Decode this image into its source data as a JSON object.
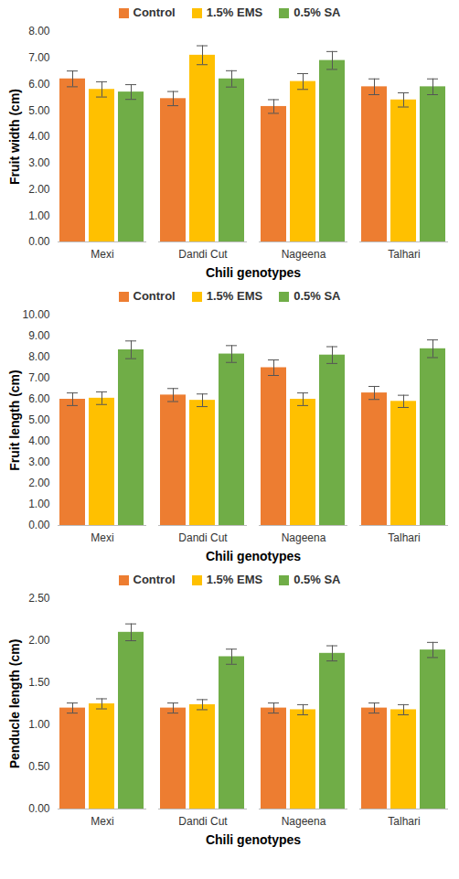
{
  "chart_data": [
    {
      "type": "bar",
      "xlabel": "Chili genotypes",
      "ylabel": "Fruit width (cm)",
      "categories": [
        "Mexi",
        "Dandi Cut",
        "Nageena",
        "Talhari"
      ],
      "series": [
        {
          "name": "Control",
          "color": "#ED7D31",
          "values": [
            6.2,
            5.45,
            5.15,
            5.9
          ],
          "errors": [
            0.3,
            0.27,
            0.26,
            0.3
          ]
        },
        {
          "name": "1.5% EMS",
          "color": "#FFC000",
          "values": [
            5.8,
            7.1,
            6.1,
            5.4
          ],
          "errors": [
            0.29,
            0.36,
            0.3,
            0.27
          ]
        },
        {
          "name": "0.5% SA",
          "color": "#70AD47",
          "values": [
            5.7,
            6.2,
            6.9,
            5.9
          ],
          "errors": [
            0.28,
            0.31,
            0.34,
            0.3
          ]
        }
      ],
      "ylim": [
        0,
        8
      ],
      "yticks": [
        {
          "value": 0,
          "label": "0.00"
        },
        {
          "value": 1,
          "label": "1.00"
        },
        {
          "value": 2,
          "label": "2.00"
        },
        {
          "value": 3,
          "label": "3.00"
        },
        {
          "value": 4,
          "label": "4.00"
        },
        {
          "value": 5,
          "label": "5.00"
        },
        {
          "value": 6,
          "label": "6.00"
        },
        {
          "value": 7,
          "label": "7.00"
        },
        {
          "value": 8,
          "label": "8.00"
        }
      ],
      "grid": false,
      "legend": "top"
    },
    {
      "type": "bar",
      "xlabel": "Chili genotypes",
      "ylabel": "Fruit length (cm)",
      "categories": [
        "Mexi",
        "Dandi Cut",
        "Nageena",
        "Talhari"
      ],
      "series": [
        {
          "name": "Control",
          "color": "#ED7D31",
          "values": [
            6.0,
            6.2,
            7.5,
            6.3
          ],
          "errors": [
            0.3,
            0.31,
            0.37,
            0.31
          ]
        },
        {
          "name": "1.5% EMS",
          "color": "#FFC000",
          "values": [
            6.05,
            5.95,
            6.0,
            5.9
          ],
          "errors": [
            0.3,
            0.3,
            0.3,
            0.29
          ]
        },
        {
          "name": "0.5% SA",
          "color": "#70AD47",
          "values": [
            8.35,
            8.15,
            8.1,
            8.4
          ],
          "errors": [
            0.42,
            0.4,
            0.4,
            0.42
          ]
        }
      ],
      "ylim": [
        0,
        10
      ],
      "yticks": [
        {
          "value": 0,
          "label": "0.00"
        },
        {
          "value": 1,
          "label": "1.00"
        },
        {
          "value": 2,
          "label": "2.00"
        },
        {
          "value": 3,
          "label": "3.00"
        },
        {
          "value": 4,
          "label": "4.00"
        },
        {
          "value": 5,
          "label": "5.00"
        },
        {
          "value": 6,
          "label": "6.00"
        },
        {
          "value": 7,
          "label": "7.00"
        },
        {
          "value": 8,
          "label": "8.00"
        },
        {
          "value": 9,
          "label": "9.00"
        },
        {
          "value": 10,
          "label": "10.00"
        }
      ],
      "grid": false,
      "legend": "top"
    },
    {
      "type": "bar",
      "xlabel": "Chili genotypes",
      "ylabel": "Penducle length (cm)",
      "categories": [
        "Mexi",
        "Dandi Cut",
        "Nageena",
        "Talhari"
      ],
      "series": [
        {
          "name": "Control",
          "color": "#ED7D31",
          "values": [
            1.2,
            1.2,
            1.2,
            1.2
          ],
          "errors": [
            0.06,
            0.06,
            0.06,
            0.06
          ]
        },
        {
          "name": "1.5% EMS",
          "color": "#FFC000",
          "values": [
            1.25,
            1.24,
            1.18,
            1.18
          ],
          "errors": [
            0.06,
            0.06,
            0.06,
            0.06
          ]
        },
        {
          "name": "0.5% SA",
          "color": "#70AD47",
          "values": [
            2.1,
            1.81,
            1.85,
            1.89
          ],
          "errors": [
            0.1,
            0.09,
            0.09,
            0.09
          ]
        }
      ],
      "ylim": [
        0,
        2.5
      ],
      "yticks": [
        {
          "value": 0,
          "label": "0.00"
        },
        {
          "value": 0.5,
          "label": "0.50"
        },
        {
          "value": 1,
          "label": "1.00"
        },
        {
          "value": 1.5,
          "label": "1.50"
        },
        {
          "value": 2,
          "label": "2.00"
        },
        {
          "value": 2.5,
          "label": "2.50"
        }
      ],
      "grid": false,
      "legend": "top"
    }
  ]
}
